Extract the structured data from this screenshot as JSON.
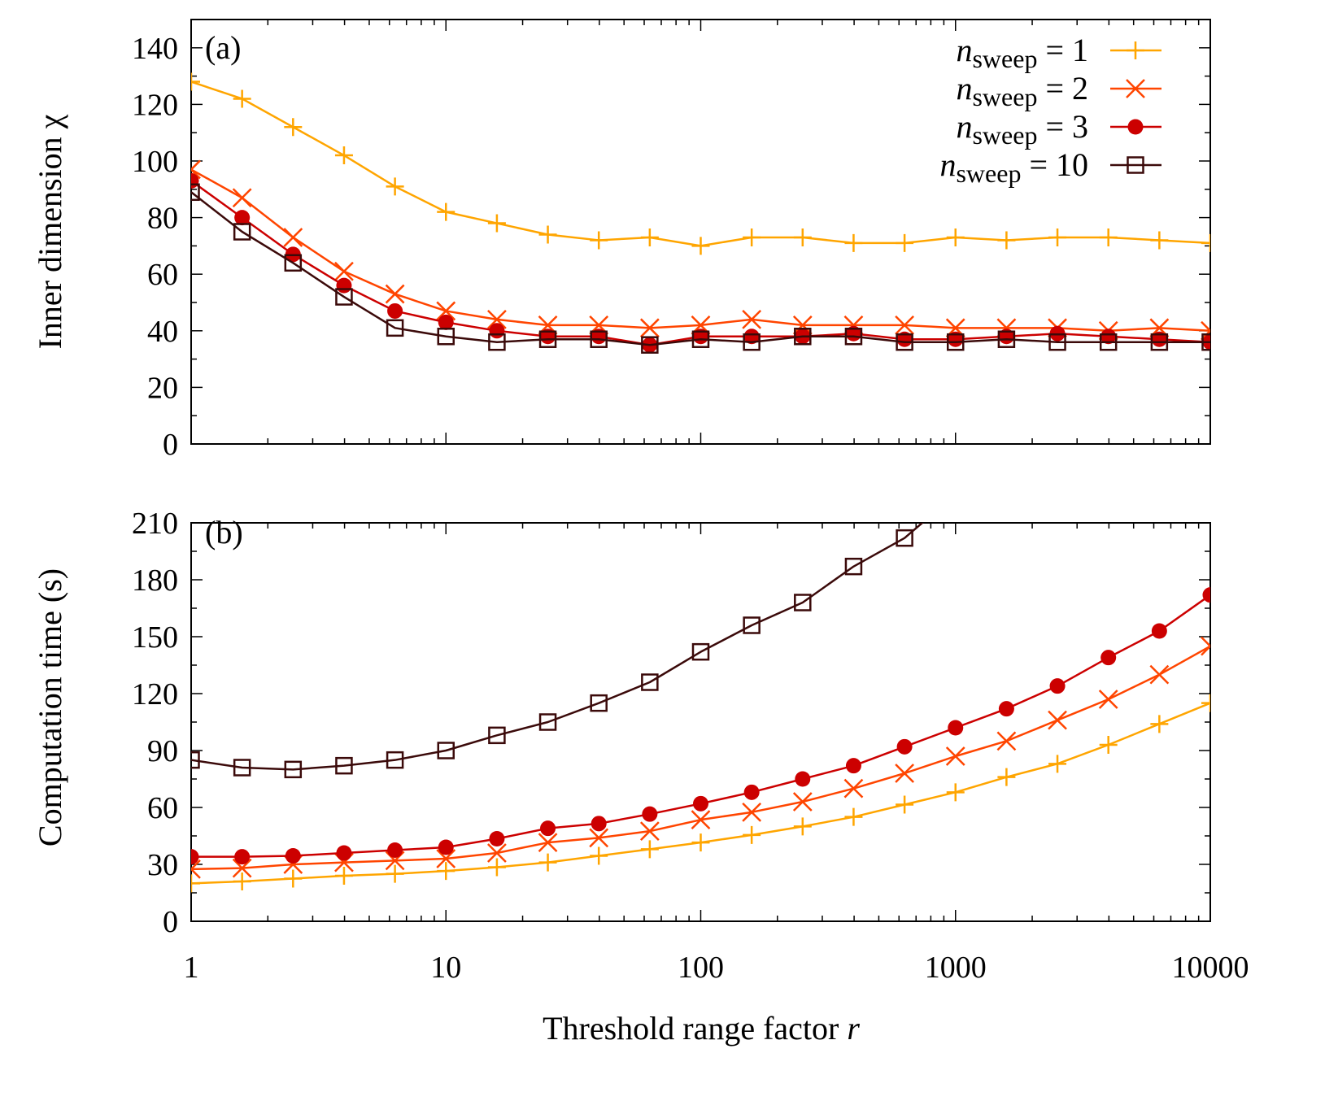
{
  "chart_data": [
    {
      "type": "line",
      "panel_label": "(a)",
      "title": "",
      "xlabel": "Threshold range factor r",
      "ylabel": "Inner dimension χ",
      "xscale": "log",
      "xlim": [
        1,
        10000
      ],
      "ylim": [
        0,
        150
      ],
      "yticks": [
        0,
        20,
        40,
        60,
        80,
        100,
        120,
        140
      ],
      "grid": false,
      "legend_position": "upper right",
      "x": [
        1,
        1.585,
        2.512,
        3.981,
        6.31,
        10,
        15.85,
        25.12,
        39.81,
        63.1,
        100,
        158.5,
        251.2,
        398.1,
        631,
        1000,
        1585,
        2512,
        3981,
        6310,
        10000
      ],
      "series": [
        {
          "name": "n_sweep = 1",
          "color": "#FFA500",
          "marker": "plus",
          "values": [
            128,
            122,
            112,
            102,
            91,
            82,
            78,
            74,
            72,
            73,
            70,
            73,
            73,
            71,
            71,
            73,
            72,
            73,
            73,
            72,
            71
          ]
        },
        {
          "name": "n_sweep = 2",
          "color": "#FF4500",
          "marker": "cross",
          "values": [
            97,
            87,
            73,
            61,
            53,
            47,
            44,
            42,
            42,
            41,
            42,
            44,
            42,
            42,
            42,
            41,
            41,
            41,
            40,
            41,
            40
          ]
        },
        {
          "name": "n_sweep = 3",
          "color": "#CC0000",
          "marker": "filled-circle",
          "values": [
            93,
            80,
            67,
            56,
            47,
            43,
            40,
            38,
            38,
            35,
            38,
            38,
            38,
            39,
            37,
            37,
            38,
            39,
            38,
            37,
            36
          ]
        },
        {
          "name": "n_sweep = 10",
          "color": "#3B0A0A",
          "marker": "open-square",
          "values": [
            89,
            75,
            64,
            52,
            41,
            38,
            36,
            37,
            37,
            35,
            37,
            36,
            38,
            38,
            36,
            36,
            37,
            36,
            36,
            36,
            36
          ]
        }
      ]
    },
    {
      "type": "line",
      "panel_label": "(b)",
      "title": "",
      "xlabel": "Threshold range factor r",
      "ylabel": "Computation time (s)",
      "xscale": "log",
      "xlim": [
        1,
        10000
      ],
      "ylim": [
        0,
        210
      ],
      "yticks": [
        0,
        30,
        60,
        90,
        120,
        150,
        180,
        210
      ],
      "grid": false,
      "x": [
        1,
        1.585,
        2.512,
        3.981,
        6.31,
        10,
        15.85,
        25.12,
        39.81,
        63.1,
        100,
        158.5,
        251.2,
        398.1,
        631,
        1000,
        1585,
        2512,
        3981,
        6310,
        10000
      ],
      "series": [
        {
          "name": "n_sweep = 1",
          "color": "#FFA500",
          "marker": "plus",
          "values": [
            20,
            21,
            22.5,
            24,
            25,
            26.5,
            28.5,
            31,
            34.5,
            38,
            41.5,
            45.5,
            50,
            55,
            61.5,
            68,
            76,
            83,
            93,
            104,
            115
          ]
        },
        {
          "name": "n_sweep = 2",
          "color": "#FF4500",
          "marker": "cross",
          "values": [
            27.5,
            28,
            30,
            31,
            32,
            33,
            36,
            41.5,
            44,
            47.5,
            53.5,
            57.5,
            63,
            70,
            78,
            87,
            95,
            106,
            117,
            130,
            145
          ]
        },
        {
          "name": "n_sweep = 3",
          "color": "#CC0000",
          "marker": "filled-circle",
          "values": [
            34,
            34,
            34.5,
            36,
            37.5,
            39,
            43.5,
            49,
            51.5,
            56.5,
            62,
            68,
            75,
            82,
            92,
            102,
            112,
            124,
            139,
            153,
            172
          ]
        },
        {
          "name": "n_sweep = 10",
          "color": "#3B0A0A",
          "marker": "open-square",
          "values": [
            85,
            81,
            80,
            82,
            85,
            90,
            98,
            105,
            115,
            126,
            142,
            156,
            168,
            187,
            202,
            225,
            null,
            null,
            null,
            null,
            null
          ]
        }
      ]
    }
  ],
  "xaxis": {
    "ticks": [
      1,
      10,
      100,
      1000,
      10000
    ],
    "tick_labels": [
      "1",
      "10",
      "100",
      "1000",
      "10000"
    ],
    "label_prefix": "Threshold range factor ",
    "label_var": "r"
  },
  "panels": {
    "a": {
      "label": "(a)",
      "ylabel": "Inner dimension χ",
      "ytick_labels": [
        "0",
        "20",
        "40",
        "60",
        "80",
        "100",
        "120",
        "140"
      ]
    },
    "b": {
      "label": "(b)",
      "ylabel": "Computation time (s)",
      "ytick_labels": [
        "0",
        "30",
        "60",
        "90",
        "120",
        "150",
        "180",
        "210"
      ]
    }
  },
  "legend": {
    "items": [
      {
        "var": "n",
        "sub": "sweep",
        "eq": "= 1"
      },
      {
        "var": "n",
        "sub": "sweep",
        "eq": "= 2"
      },
      {
        "var": "n",
        "sub": "sweep",
        "eq": "= 3"
      },
      {
        "var": "n",
        "sub": "sweep",
        "eq": "= 10"
      }
    ]
  }
}
